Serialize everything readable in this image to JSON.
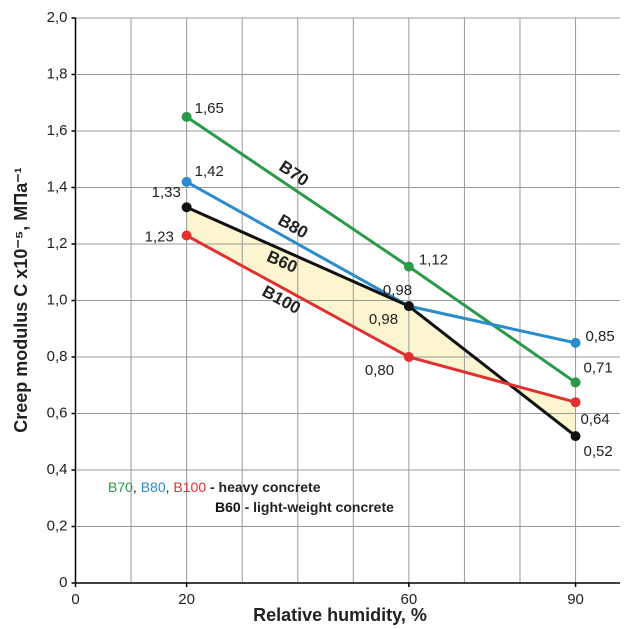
{
  "chart_data": {
    "type": "line",
    "x_label": "Relative humidity, %",
    "y_label": "Creep modulus  C x10⁻⁵, МПа⁻¹",
    "x": [
      20,
      60,
      90
    ],
    "xlim": [
      0,
      98
    ],
    "xticks": [
      0,
      20,
      60,
      90
    ],
    "xgrid": [
      10,
      20,
      30,
      40,
      50,
      60,
      70,
      80,
      90
    ],
    "ylim": [
      0,
      2
    ],
    "yticks": [
      0,
      {
        "value": 0.2,
        "label": "0,2"
      },
      {
        "value": 0.4,
        "label": "0,4"
      },
      {
        "value": 0.6,
        "label": "0,6"
      },
      {
        "value": 0.8,
        "label": "0,8"
      },
      {
        "value": 1.0,
        "label": "1,0"
      },
      {
        "value": 1.2,
        "label": "1,2"
      },
      {
        "value": 1.4,
        "label": "1,4"
      },
      {
        "value": 1.6,
        "label": "1,6"
      },
      {
        "value": 1.8,
        "label": "1,8"
      },
      {
        "value": 2.0,
        "label": "2,0"
      }
    ],
    "grid": true,
    "series": [
      {
        "name": "B70",
        "color": "#2a9a48",
        "values": [
          1.65,
          1.12,
          0.71
        ],
        "value_labels": [
          "1,65",
          "1,12",
          "0,71"
        ]
      },
      {
        "name": "B80",
        "color": "#2a8ccc",
        "values": [
          1.42,
          0.98,
          0.85
        ],
        "value_labels": [
          "1,42",
          "0,98",
          "0,85"
        ]
      },
      {
        "name": "B60",
        "color": "#111111",
        "values": [
          1.33,
          0.98,
          0.52
        ],
        "value_labels": [
          "1,33",
          "0,98",
          "0,52"
        ]
      },
      {
        "name": "B100",
        "color": "#e03030",
        "values": [
          1.23,
          0.8,
          0.64
        ],
        "value_labels": [
          "1,23",
          "0,80",
          "0,64"
        ]
      }
    ],
    "shaded_between": [
      "B60",
      "B100"
    ],
    "shade_color": "#fbf6cf",
    "legend_separator": ",",
    "legend_heavy": "- heavy concrete",
    "legend_light": "- light-weight concrete"
  }
}
